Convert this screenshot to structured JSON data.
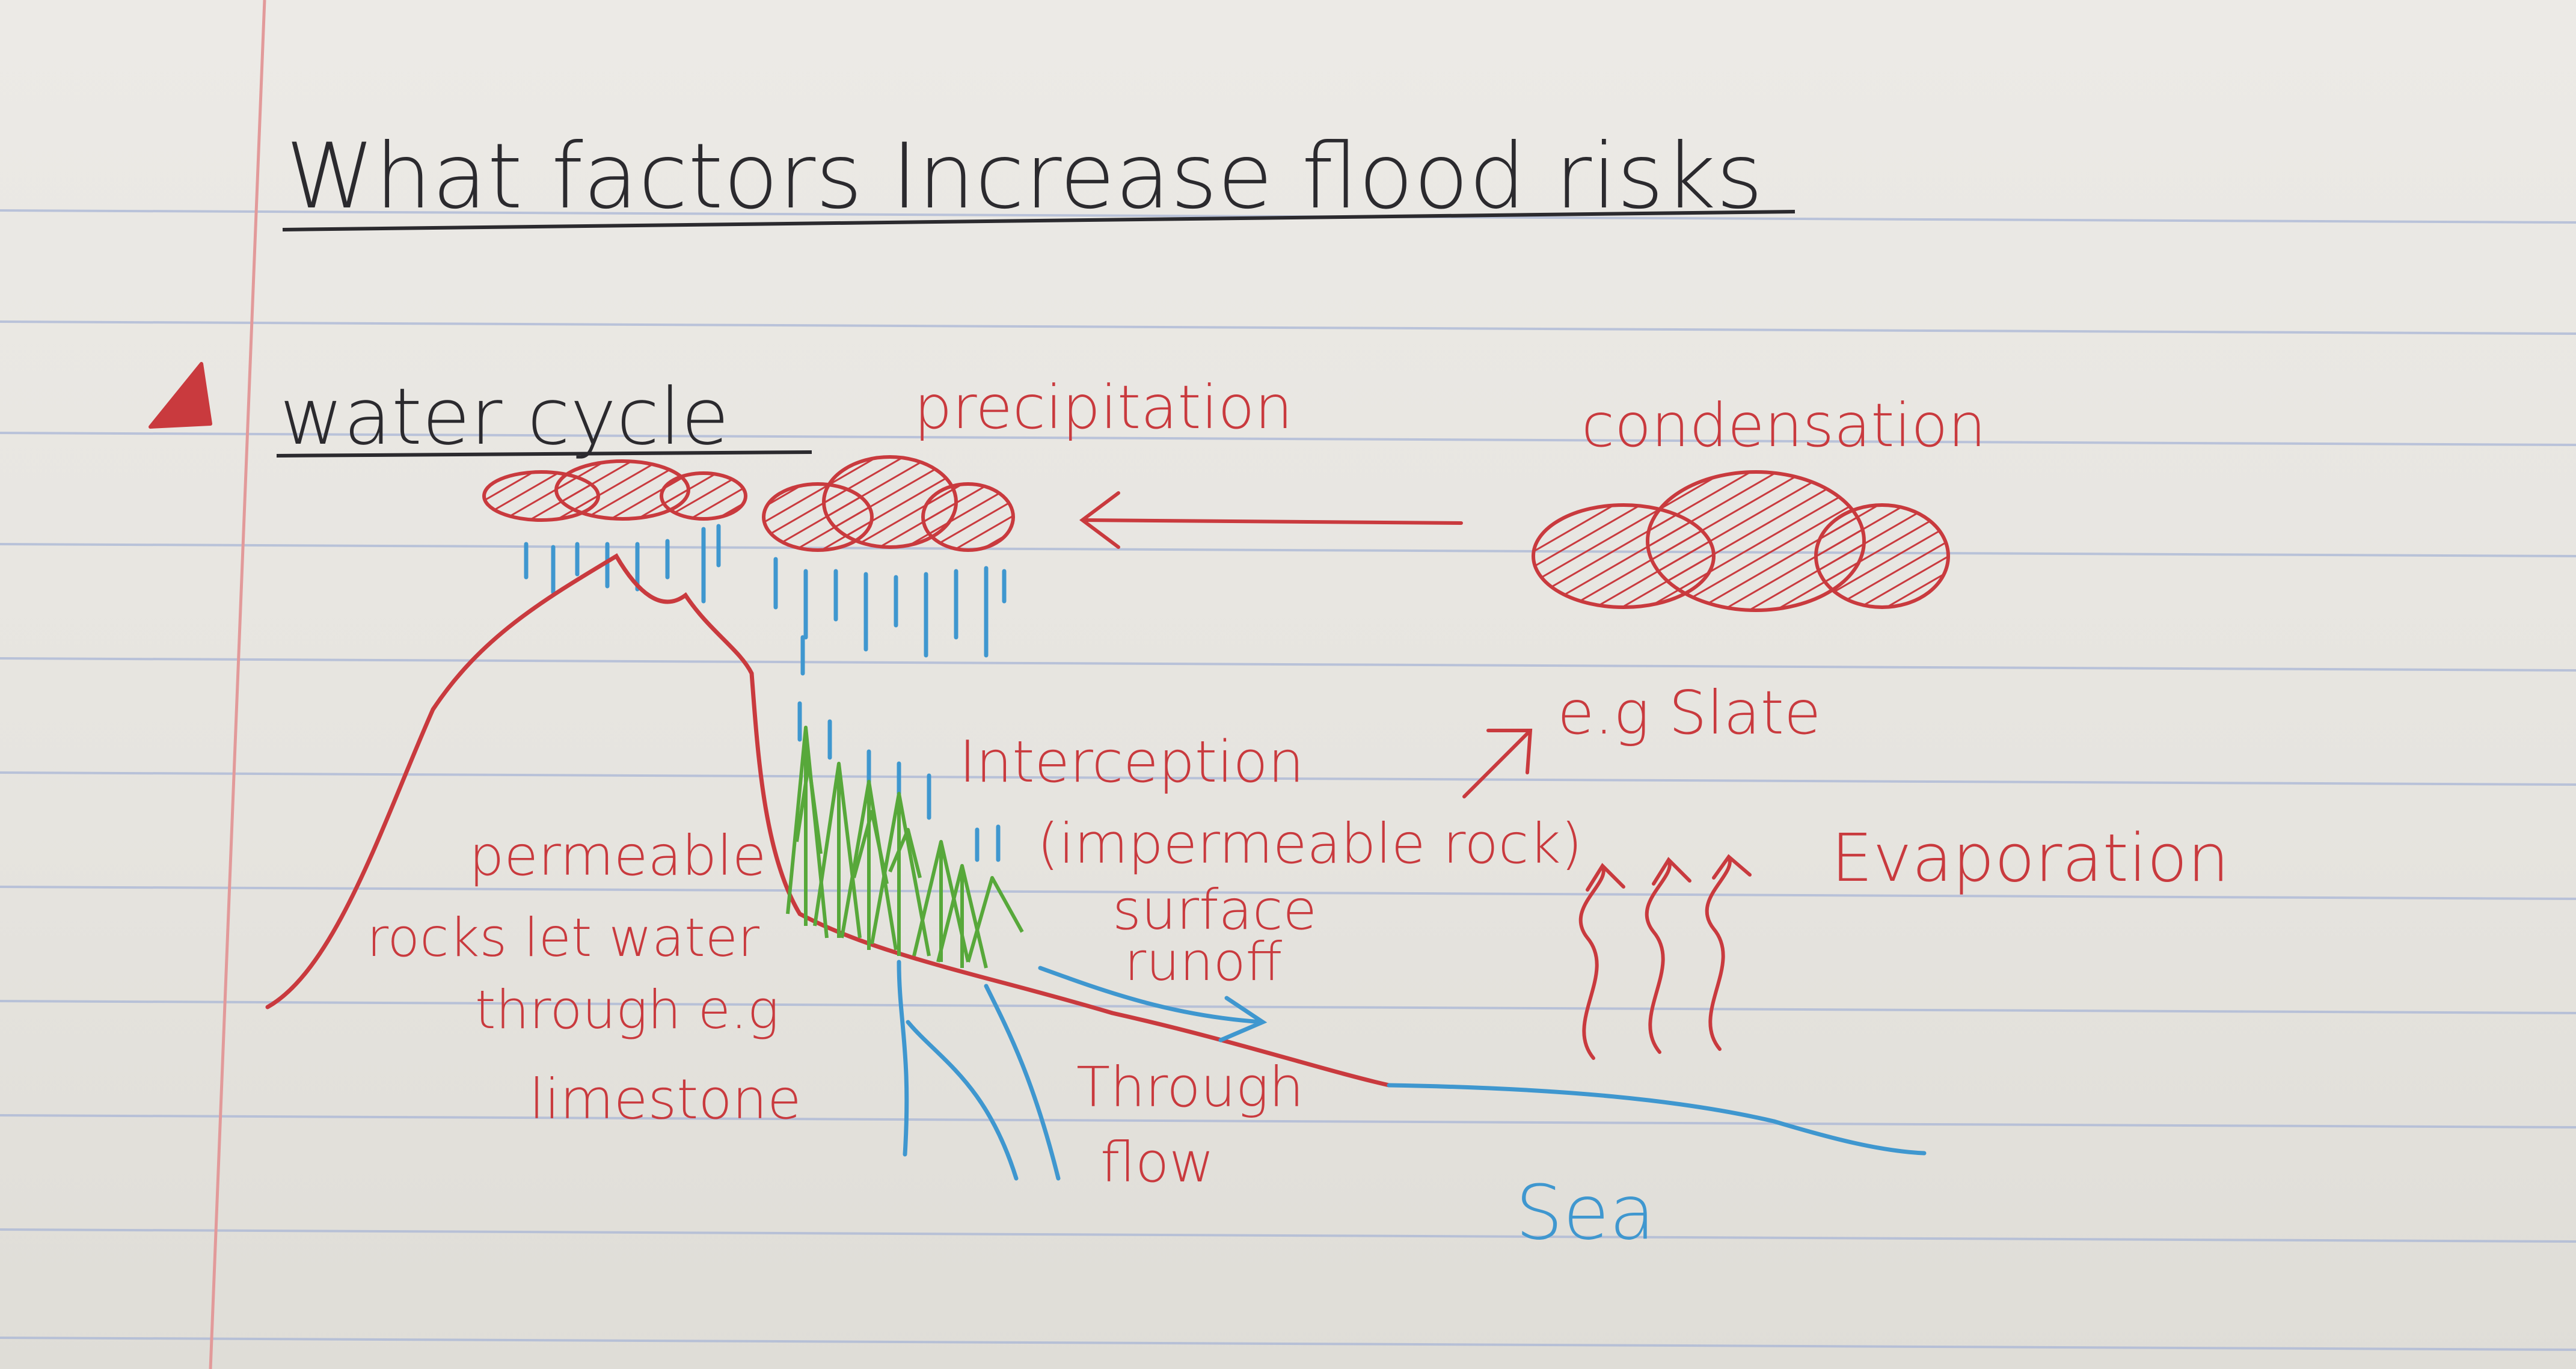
{
  "title": "What factors Increase flood risks",
  "section": {
    "bullet": "warning-triangle",
    "heading": "water cycle"
  },
  "diagram_labels": {
    "precipitation": "precipitation",
    "condensation": "condensation",
    "interception": "Interception",
    "example_rock": "e.g Slate",
    "impermeable_rock": "(impermeable rock)",
    "evaporation": "Evaporation",
    "permeable_line1": "permeable",
    "permeable_line2": "rocks let water",
    "permeable_line3": "through e.g",
    "permeable_line4": "limestone",
    "surface_runoff_line1": "surface",
    "surface_runoff_line2": "runoff",
    "throughflow_line1": "Through",
    "throughflow_line2": "flow",
    "sea": "Sea"
  },
  "colors": {
    "paper": "#e9e7e2",
    "rule_line": "#a9b6d6",
    "margin_line": "#e29a9a",
    "black_ink": "#2b2a2e",
    "red_ink": "#c93a3e",
    "blue_ink": "#3f97cf",
    "green_ink": "#57a83a"
  }
}
